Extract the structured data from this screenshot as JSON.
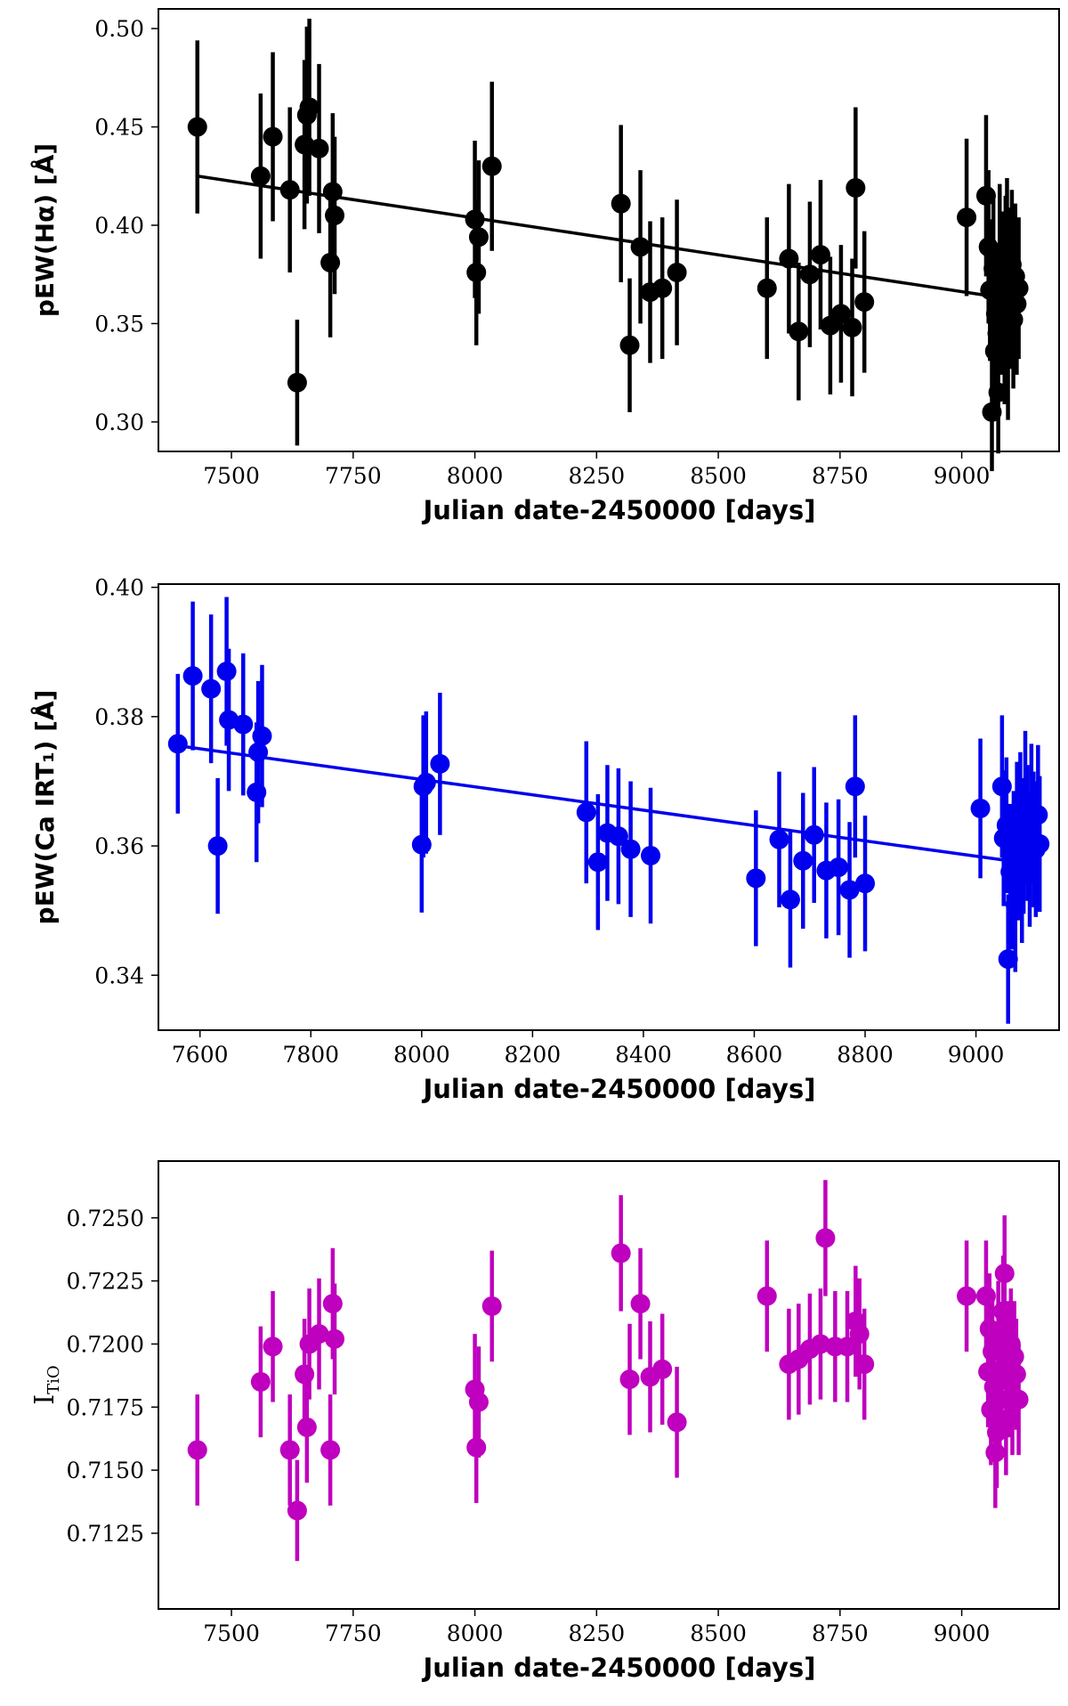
{
  "chart_data": [
    {
      "type": "scatter",
      "marker_color": "#000000",
      "xlabel": "Julian date-2450000 [days]",
      "ylabel": "pEW(Hα) [Å]",
      "xlim": [
        7350,
        9200
      ],
      "ylim": [
        0.285,
        0.51
      ],
      "xticks": [
        7500,
        7750,
        8000,
        8250,
        8500,
        8750,
        9000
      ],
      "xtick_labels": [
        "7500",
        "7750",
        "8000",
        "8250",
        "8500",
        "8750",
        "9000"
      ],
      "yticks": [
        0.3,
        0.35,
        0.4,
        0.45,
        0.5
      ],
      "ytick_labels": [
        "0.30",
        "0.35",
        "0.40",
        "0.45",
        "0.50"
      ],
      "fit_line": {
        "x": [
          7430,
          9060
        ],
        "y": [
          0.425,
          0.364
        ]
      },
      "points": [
        {
          "x": 7430,
          "y": 0.45,
          "err": 0.044
        },
        {
          "x": 7560,
          "y": 0.425,
          "err": 0.042
        },
        {
          "x": 7585,
          "y": 0.445,
          "err": 0.043
        },
        {
          "x": 7620,
          "y": 0.418,
          "err": 0.042
        },
        {
          "x": 7635,
          "y": 0.32,
          "err": 0.032
        },
        {
          "x": 7650,
          "y": 0.441,
          "err": 0.043
        },
        {
          "x": 7655,
          "y": 0.456,
          "err": 0.045
        },
        {
          "x": 7660,
          "y": 0.46,
          "err": 0.045
        },
        {
          "x": 7680,
          "y": 0.439,
          "err": 0.043
        },
        {
          "x": 7703,
          "y": 0.381,
          "err": 0.038
        },
        {
          "x": 7708,
          "y": 0.417,
          "err": 0.04
        },
        {
          "x": 7712,
          "y": 0.405,
          "err": 0.04
        },
        {
          "x": 8000,
          "y": 0.403,
          "err": 0.04
        },
        {
          "x": 8003,
          "y": 0.376,
          "err": 0.037
        },
        {
          "x": 8008,
          "y": 0.394,
          "err": 0.039
        },
        {
          "x": 8035,
          "y": 0.43,
          "err": 0.043
        },
        {
          "x": 8300,
          "y": 0.411,
          "err": 0.04
        },
        {
          "x": 8318,
          "y": 0.339,
          "err": 0.034
        },
        {
          "x": 8340,
          "y": 0.389,
          "err": 0.039
        },
        {
          "x": 8360,
          "y": 0.366,
          "err": 0.036
        },
        {
          "x": 8385,
          "y": 0.368,
          "err": 0.036
        },
        {
          "x": 8415,
          "y": 0.376,
          "err": 0.037
        },
        {
          "x": 8600,
          "y": 0.368,
          "err": 0.036
        },
        {
          "x": 8645,
          "y": 0.383,
          "err": 0.038
        },
        {
          "x": 8665,
          "y": 0.346,
          "err": 0.035
        },
        {
          "x": 8688,
          "y": 0.375,
          "err": 0.037
        },
        {
          "x": 8710,
          "y": 0.385,
          "err": 0.038
        },
        {
          "x": 8730,
          "y": 0.349,
          "err": 0.035
        },
        {
          "x": 8752,
          "y": 0.355,
          "err": 0.035
        },
        {
          "x": 8775,
          "y": 0.348,
          "err": 0.035
        },
        {
          "x": 8782,
          "y": 0.419,
          "err": 0.041
        },
        {
          "x": 8800,
          "y": 0.361,
          "err": 0.036
        },
        {
          "x": 9010,
          "y": 0.404,
          "err": 0.04
        },
        {
          "x": 9050,
          "y": 0.415,
          "err": 0.041
        },
        {
          "x": 9055,
          "y": 0.389,
          "err": 0.039
        },
        {
          "x": 9058,
          "y": 0.367,
          "err": 0.036
        },
        {
          "x": 9062,
          "y": 0.305,
          "err": 0.03
        },
        {
          "x": 9065,
          "y": 0.378,
          "err": 0.037
        },
        {
          "x": 9068,
          "y": 0.336,
          "err": 0.033
        },
        {
          "x": 9070,
          "y": 0.355,
          "err": 0.035
        },
        {
          "x": 9073,
          "y": 0.345,
          "err": 0.034
        },
        {
          "x": 9075,
          "y": 0.315,
          "err": 0.031
        },
        {
          "x": 9078,
          "y": 0.383,
          "err": 0.038
        },
        {
          "x": 9082,
          "y": 0.36,
          "err": 0.036
        },
        {
          "x": 9085,
          "y": 0.37,
          "err": 0.037
        },
        {
          "x": 9088,
          "y": 0.343,
          "err": 0.034
        },
        {
          "x": 9090,
          "y": 0.378,
          "err": 0.037
        },
        {
          "x": 9093,
          "y": 0.386,
          "err": 0.038
        },
        {
          "x": 9095,
          "y": 0.334,
          "err": 0.033
        },
        {
          "x": 9098,
          "y": 0.372,
          "err": 0.037
        },
        {
          "x": 9100,
          "y": 0.363,
          "err": 0.036
        },
        {
          "x": 9103,
          "y": 0.38,
          "err": 0.038
        },
        {
          "x": 9106,
          "y": 0.352,
          "err": 0.035
        },
        {
          "x": 9110,
          "y": 0.374,
          "err": 0.037
        },
        {
          "x": 9113,
          "y": 0.36,
          "err": 0.036
        },
        {
          "x": 9117,
          "y": 0.368,
          "err": 0.036
        }
      ]
    },
    {
      "type": "scatter",
      "marker_color": "#0000ee",
      "xlabel": "Julian date-2450000 [days]",
      "ylabel": "pEW(Ca IRT₁) [Å]",
      "xlim": [
        7525,
        9150
      ],
      "ylim": [
        0.3315,
        0.4005
      ],
      "xticks": [
        7600,
        7800,
        8000,
        8200,
        8400,
        8600,
        8800,
        9000
      ],
      "xtick_labels": [
        "7600",
        "7800",
        "8000",
        "8200",
        "8400",
        "8600",
        "8800",
        "9000"
      ],
      "yticks": [
        0.34,
        0.36,
        0.38,
        0.4
      ],
      "ytick_labels": [
        "0.34",
        "0.36",
        "0.38",
        "0.40"
      ],
      "fit_line": {
        "x": [
          7560,
          9060
        ],
        "y": [
          0.3755,
          0.3577
        ]
      },
      "points": [
        {
          "x": 7560,
          "y": 0.3758,
          "err": 0.0108
        },
        {
          "x": 7587,
          "y": 0.3863,
          "err": 0.0115
        },
        {
          "x": 7620,
          "y": 0.3843,
          "err": 0.0115
        },
        {
          "x": 7632,
          "y": 0.36,
          "err": 0.0105
        },
        {
          "x": 7648,
          "y": 0.387,
          "err": 0.0115
        },
        {
          "x": 7652,
          "y": 0.3795,
          "err": 0.011
        },
        {
          "x": 7678,
          "y": 0.3788,
          "err": 0.011
        },
        {
          "x": 7702,
          "y": 0.3683,
          "err": 0.0108
        },
        {
          "x": 7705,
          "y": 0.3745,
          "err": 0.011
        },
        {
          "x": 7712,
          "y": 0.377,
          "err": 0.011
        },
        {
          "x": 8000,
          "y": 0.3602,
          "err": 0.0105
        },
        {
          "x": 8003,
          "y": 0.3692,
          "err": 0.011
        },
        {
          "x": 8008,
          "y": 0.3698,
          "err": 0.011
        },
        {
          "x": 8033,
          "y": 0.3727,
          "err": 0.011
        },
        {
          "x": 8297,
          "y": 0.3652,
          "err": 0.011
        },
        {
          "x": 8318,
          "y": 0.3575,
          "err": 0.0105
        },
        {
          "x": 8335,
          "y": 0.362,
          "err": 0.0105
        },
        {
          "x": 8355,
          "y": 0.3615,
          "err": 0.0105
        },
        {
          "x": 8377,
          "y": 0.3595,
          "err": 0.0105
        },
        {
          "x": 8413,
          "y": 0.3585,
          "err": 0.0105
        },
        {
          "x": 8603,
          "y": 0.355,
          "err": 0.0105
        },
        {
          "x": 8645,
          "y": 0.361,
          "err": 0.0105
        },
        {
          "x": 8665,
          "y": 0.3517,
          "err": 0.0105
        },
        {
          "x": 8688,
          "y": 0.3577,
          "err": 0.0105
        },
        {
          "x": 8708,
          "y": 0.3617,
          "err": 0.0105
        },
        {
          "x": 8730,
          "y": 0.3562,
          "err": 0.0105
        },
        {
          "x": 8752,
          "y": 0.3567,
          "err": 0.0105
        },
        {
          "x": 8772,
          "y": 0.3532,
          "err": 0.0105
        },
        {
          "x": 8782,
          "y": 0.3692,
          "err": 0.011
        },
        {
          "x": 8800,
          "y": 0.3542,
          "err": 0.0105
        },
        {
          "x": 9008,
          "y": 0.3658,
          "err": 0.0108
        },
        {
          "x": 9047,
          "y": 0.3692,
          "err": 0.011
        },
        {
          "x": 9050,
          "y": 0.3612,
          "err": 0.0105
        },
        {
          "x": 9055,
          "y": 0.3632,
          "err": 0.0105
        },
        {
          "x": 9058,
          "y": 0.3425,
          "err": 0.01
        },
        {
          "x": 9062,
          "y": 0.356,
          "err": 0.0105
        },
        {
          "x": 9065,
          "y": 0.3545,
          "err": 0.0105
        },
        {
          "x": 9068,
          "y": 0.358,
          "err": 0.0105
        },
        {
          "x": 9071,
          "y": 0.351,
          "err": 0.0105
        },
        {
          "x": 9074,
          "y": 0.3625,
          "err": 0.0105
        },
        {
          "x": 9077,
          "y": 0.359,
          "err": 0.0105
        },
        {
          "x": 9080,
          "y": 0.364,
          "err": 0.0105
        },
        {
          "x": 9083,
          "y": 0.3555,
          "err": 0.0105
        },
        {
          "x": 9086,
          "y": 0.36,
          "err": 0.0105
        },
        {
          "x": 9089,
          "y": 0.367,
          "err": 0.0108
        },
        {
          "x": 9093,
          "y": 0.362,
          "err": 0.0105
        },
        {
          "x": 9097,
          "y": 0.358,
          "err": 0.0105
        },
        {
          "x": 9100,
          "y": 0.365,
          "err": 0.0108
        },
        {
          "x": 9104,
          "y": 0.361,
          "err": 0.0105
        },
        {
          "x": 9108,
          "y": 0.3595,
          "err": 0.0105
        },
        {
          "x": 9112,
          "y": 0.3648,
          "err": 0.0108
        },
        {
          "x": 9115,
          "y": 0.3603,
          "err": 0.0105
        }
      ]
    },
    {
      "type": "scatter",
      "marker_color": "#bf00bf",
      "xlabel": "Julian date-2450000 [days]",
      "ylabel": "I_TiO",
      "ylabel_main": "I",
      "ylabel_sub": "TiO",
      "xlim": [
        7350,
        9200
      ],
      "ylim": [
        0.7095,
        0.72725
      ],
      "xticks": [
        7500,
        7750,
        8000,
        8250,
        8500,
        8750,
        9000
      ],
      "xtick_labels": [
        "7500",
        "7750",
        "8000",
        "8250",
        "8500",
        "8750",
        "9000"
      ],
      "yticks": [
        0.7125,
        0.715,
        0.7175,
        0.72,
        0.7225,
        0.725
      ],
      "ytick_labels": [
        "0.7125",
        "0.7150",
        "0.7175",
        "0.7200",
        "0.7225",
        "0.7250"
      ],
      "fit_line": null,
      "points": [
        {
          "x": 7430,
          "y": 0.7158,
          "err": 0.0022
        },
        {
          "x": 7560,
          "y": 0.7185,
          "err": 0.0022
        },
        {
          "x": 7585,
          "y": 0.7199,
          "err": 0.0022
        },
        {
          "x": 7620,
          "y": 0.7158,
          "err": 0.0022
        },
        {
          "x": 7635,
          "y": 0.7134,
          "err": 0.002
        },
        {
          "x": 7650,
          "y": 0.7188,
          "err": 0.0022
        },
        {
          "x": 7655,
          "y": 0.7167,
          "err": 0.0022
        },
        {
          "x": 7660,
          "y": 0.72,
          "err": 0.0022
        },
        {
          "x": 7680,
          "y": 0.7204,
          "err": 0.0022
        },
        {
          "x": 7703,
          "y": 0.7158,
          "err": 0.0022
        },
        {
          "x": 7708,
          "y": 0.7216,
          "err": 0.0022
        },
        {
          "x": 7712,
          "y": 0.7202,
          "err": 0.0022
        },
        {
          "x": 8000,
          "y": 0.7182,
          "err": 0.0022
        },
        {
          "x": 8003,
          "y": 0.7159,
          "err": 0.0022
        },
        {
          "x": 8008,
          "y": 0.7177,
          "err": 0.0022
        },
        {
          "x": 8035,
          "y": 0.7215,
          "err": 0.0022
        },
        {
          "x": 8300,
          "y": 0.7236,
          "err": 0.0023
        },
        {
          "x": 8318,
          "y": 0.7186,
          "err": 0.0022
        },
        {
          "x": 8340,
          "y": 0.7216,
          "err": 0.0022
        },
        {
          "x": 8360,
          "y": 0.7187,
          "err": 0.0022
        },
        {
          "x": 8385,
          "y": 0.719,
          "err": 0.0022
        },
        {
          "x": 8415,
          "y": 0.7169,
          "err": 0.0022
        },
        {
          "x": 8600,
          "y": 0.7219,
          "err": 0.0022
        },
        {
          "x": 8645,
          "y": 0.7192,
          "err": 0.0022
        },
        {
          "x": 8665,
          "y": 0.7194,
          "err": 0.0022
        },
        {
          "x": 8688,
          "y": 0.7198,
          "err": 0.0022
        },
        {
          "x": 8710,
          "y": 0.72,
          "err": 0.0022
        },
        {
          "x": 8720,
          "y": 0.7242,
          "err": 0.0023
        },
        {
          "x": 8740,
          "y": 0.7199,
          "err": 0.0022
        },
        {
          "x": 8765,
          "y": 0.7199,
          "err": 0.0022
        },
        {
          "x": 8782,
          "y": 0.7209,
          "err": 0.0022
        },
        {
          "x": 8790,
          "y": 0.7204,
          "err": 0.0022
        },
        {
          "x": 8800,
          "y": 0.7192,
          "err": 0.0022
        },
        {
          "x": 9010,
          "y": 0.7219,
          "err": 0.0022
        },
        {
          "x": 9050,
          "y": 0.7219,
          "err": 0.0022
        },
        {
          "x": 9054,
          "y": 0.7189,
          "err": 0.0022
        },
        {
          "x": 9057,
          "y": 0.7206,
          "err": 0.0022
        },
        {
          "x": 9060,
          "y": 0.7174,
          "err": 0.0022
        },
        {
          "x": 9063,
          "y": 0.7197,
          "err": 0.0022
        },
        {
          "x": 9066,
          "y": 0.7183,
          "err": 0.0022
        },
        {
          "x": 9069,
          "y": 0.7157,
          "err": 0.0022
        },
        {
          "x": 9072,
          "y": 0.7165,
          "err": 0.0022
        },
        {
          "x": 9075,
          "y": 0.7203,
          "err": 0.0022
        },
        {
          "x": 9078,
          "y": 0.7178,
          "err": 0.0022
        },
        {
          "x": 9082,
          "y": 0.719,
          "err": 0.0022
        },
        {
          "x": 9085,
          "y": 0.7213,
          "err": 0.0022
        },
        {
          "x": 9088,
          "y": 0.7228,
          "err": 0.0023
        },
        {
          "x": 9091,
          "y": 0.717,
          "err": 0.0022
        },
        {
          "x": 9094,
          "y": 0.7195,
          "err": 0.0022
        },
        {
          "x": 9098,
          "y": 0.7185,
          "err": 0.0022
        },
        {
          "x": 9101,
          "y": 0.72,
          "err": 0.0022
        },
        {
          "x": 9104,
          "y": 0.7178,
          "err": 0.0022
        },
        {
          "x": 9108,
          "y": 0.7195,
          "err": 0.0022
        },
        {
          "x": 9112,
          "y": 0.7188,
          "err": 0.0022
        },
        {
          "x": 9117,
          "y": 0.7178,
          "err": 0.0022
        }
      ]
    }
  ]
}
